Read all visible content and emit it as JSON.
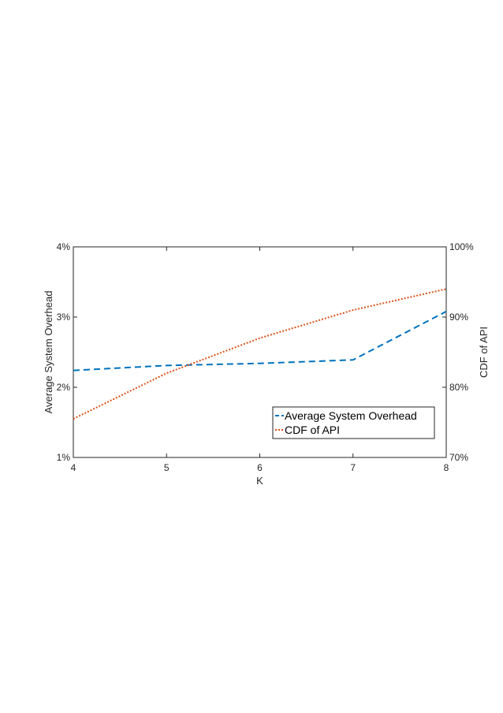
{
  "chart_data": {
    "type": "line",
    "xlabel": "K",
    "ylabel_left": "Average System Overhead",
    "ylabel_right": "CDF of API",
    "x": [
      4,
      5,
      6,
      7,
      8
    ],
    "xlim": [
      4,
      8
    ],
    "x_ticks": [
      "4",
      "5",
      "6",
      "7",
      "8"
    ],
    "ylim_left": [
      1,
      4
    ],
    "ylim_right": [
      70,
      100
    ],
    "y_ticks_left": [
      "1%",
      "2%",
      "3%",
      "4%"
    ],
    "y_ticks_right": [
      "70%",
      "80%",
      "90%",
      "100%"
    ],
    "grid": false,
    "legend_position": "bottom-right",
    "series": [
      {
        "name": "Average System Overhead",
        "axis": "left",
        "values": [
          2.24,
          2.31,
          2.34,
          2.39,
          3.08
        ],
        "color": "#0072BD",
        "style": "dashed"
      },
      {
        "name": "CDF of API",
        "axis": "right",
        "values": [
          75.5,
          82.0,
          87.0,
          91.0,
          94.0
        ],
        "color": "#D95319",
        "style": "dotted"
      }
    ]
  }
}
